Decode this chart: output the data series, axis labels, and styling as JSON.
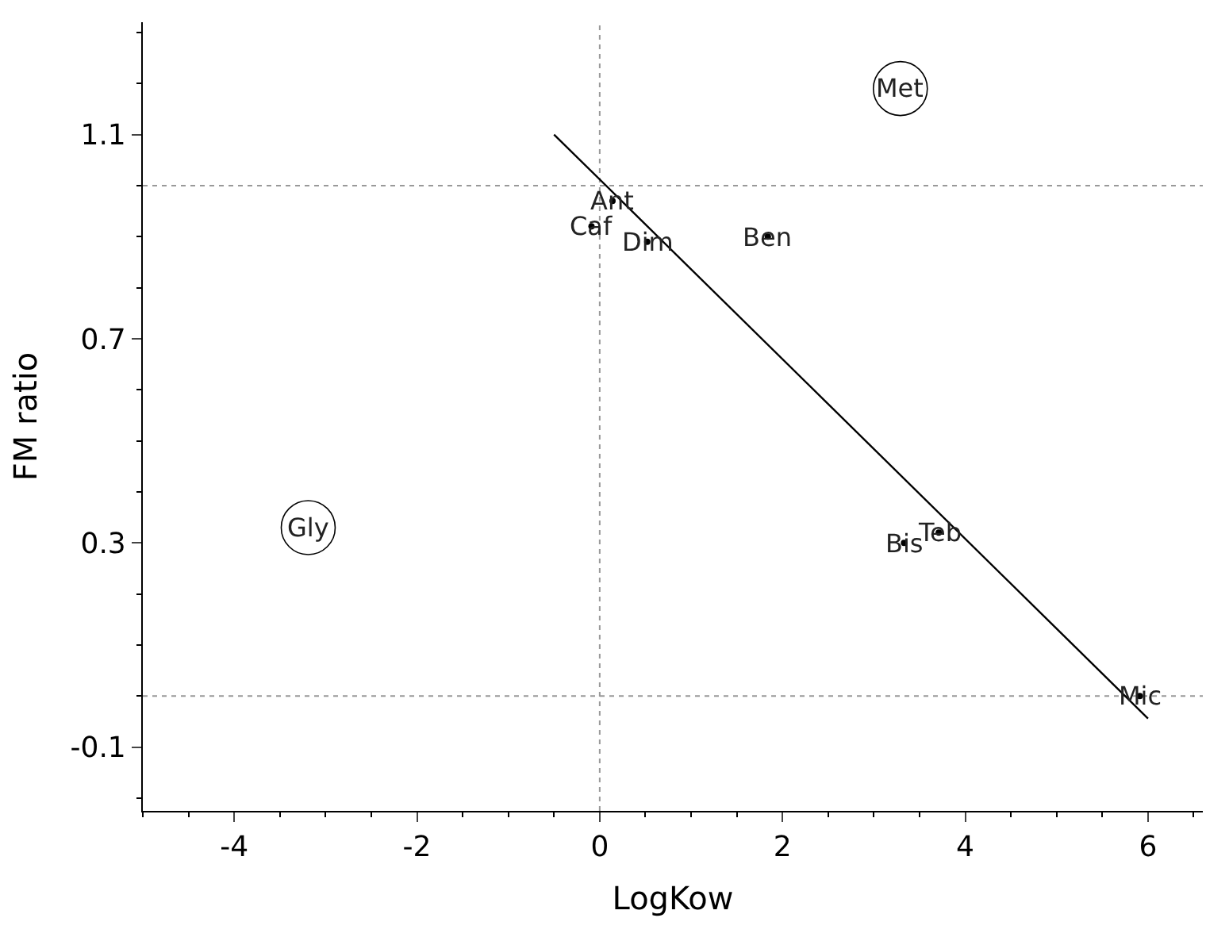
{
  "chart_data": {
    "type": "scatter",
    "xlabel": "LogKow",
    "ylabel": "FM ratio",
    "xlim": [
      -5,
      6.6
    ],
    "xticks": [
      -4,
      -2,
      0,
      2,
      4,
      6
    ],
    "ylim": [
      -0.225,
      1.32
    ],
    "yticks": [
      -0.1,
      0.3,
      0.7,
      1.1
    ],
    "series": [
      {
        "color": "#000000",
        "marker": "circle",
        "x": [
          3.29,
          -3.19
        ],
        "values": [
          1.19,
          0.33
        ]
      },
      {
        "color": "#000000",
        "marker": "circle",
        "x": [
          0.14,
          -0.09,
          0.52,
          1.84,
          3.33,
          3.71,
          5.91
        ],
        "values": [
          0.97,
          0.92,
          0.89,
          0.9,
          0.3,
          0.32,
          0.0
        ]
      },
      {
        "type": "line",
        "color": "#000000",
        "x": [
          -0.5,
          6.0
        ],
        "values": [
          1.1,
          -0.044
        ]
      }
    ],
    "annotations": [
      {
        "text": "Met",
        "x": 3.29,
        "y": 1.19
      },
      {
        "text": "Gly",
        "x": -3.19,
        "y": 0.33
      },
      {
        "text": "Ant",
        "x": 0.14,
        "y": 0.97
      },
      {
        "text": "Caf",
        "x": -0.09,
        "y": 0.92
      },
      {
        "text": "Dim",
        "x": 0.52,
        "y": 0.89
      },
      {
        "text": "Ben",
        "x": 1.84,
        "y": 0.9
      },
      {
        "text": "Bis",
        "x": 3.33,
        "y": 0.3
      },
      {
        "text": "Teb",
        "x": 3.71,
        "y": 0.32
      },
      {
        "text": "Mic",
        "x": 5.91,
        "y": 0.0
      }
    ],
    "ref_lines": [
      {
        "axis": "y",
        "value": 1.0,
        "line_style": "dotted",
        "color": "#999999"
      },
      {
        "axis": "y",
        "value": 0.0,
        "line_style": "dotted",
        "color": "#999999"
      },
      {
        "axis": "x",
        "value": 0,
        "line_style": "dotted",
        "color": "#999999"
      }
    ]
  }
}
